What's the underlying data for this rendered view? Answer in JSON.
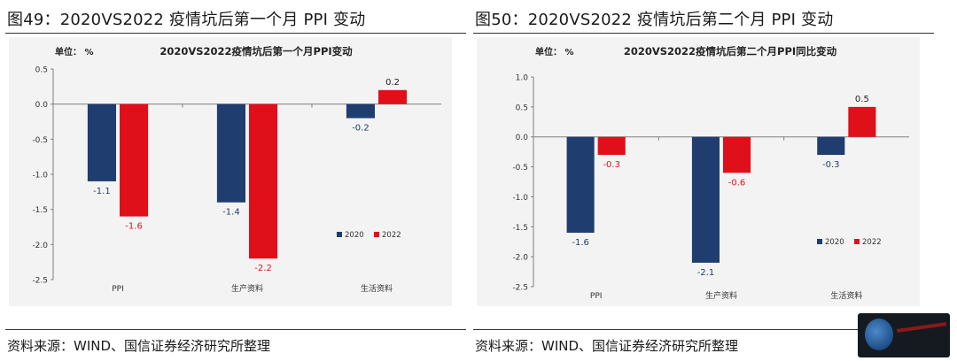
{
  "figures": [
    {
      "fig_title": "图49：2020VS2022 疫情坑后第一个月 PPI 变动",
      "source": "资料来源：WIND、国信证券经济研究所整理",
      "chart_data": {
        "type": "bar",
        "title": "2020VS2022疫情坑后第一个月PPI变动",
        "unit_label": "单位： %",
        "categories": [
          "PPI",
          "生产资料",
          "生活资料"
        ],
        "series": [
          {
            "name": "2020",
            "values": [
              -1.1,
              -1.4,
              -0.2
            ],
            "color": "#1f3d6e"
          },
          {
            "name": "2022",
            "values": [
              -1.6,
              -2.2,
              0.2
            ],
            "color": "#e0101a"
          }
        ],
        "data_labels": [
          [
            "-1.1",
            "-1.4",
            "-0.2"
          ],
          [
            "-1.6",
            "-2.2",
            "0.2"
          ]
        ],
        "ylim": [
          -2.5,
          0.5
        ],
        "yticks": [
          "0.5",
          "0.0",
          "-0.5",
          "-1.0",
          "-1.5",
          "-2.0",
          "-2.5"
        ],
        "ytick_values": [
          0.5,
          0.0,
          -0.5,
          -1.0,
          -1.5,
          -2.0,
          -2.5
        ],
        "legend_position": "lower-right",
        "grid": false
      }
    },
    {
      "fig_title": "图50：2020VS2022 疫情坑后第二个月 PPI 变动",
      "source": "资料来源：WIND、国信证券经济研究所整理",
      "chart_data": {
        "type": "bar",
        "title": "2020VS2022疫情坑后第二个月PPI同比变动",
        "unit_label": "单位： %",
        "categories": [
          "PPI",
          "生产资料",
          "生活资料"
        ],
        "series": [
          {
            "name": "2020",
            "values": [
              -1.6,
              -2.1,
              -0.3
            ],
            "color": "#1f3d6e"
          },
          {
            "name": "2022",
            "values": [
              -0.3,
              -0.6,
              0.5
            ],
            "color": "#e0101a"
          }
        ],
        "data_labels": [
          [
            "-1.6",
            "-2.1",
            "-0.3"
          ],
          [
            "-0.3",
            "-0.6",
            "0.5"
          ]
        ],
        "ylim": [
          -2.5,
          1.0
        ],
        "yticks": [
          "1.0",
          "0.5",
          "0.0",
          "-0.5",
          "-1.0",
          "-1.5",
          "-2.0",
          "-2.5"
        ],
        "ytick_values": [
          1.0,
          0.5,
          0.0,
          -0.5,
          -1.0,
          -1.5,
          -2.0,
          -2.5
        ],
        "legend_position": "lower-right",
        "grid": false
      }
    }
  ]
}
